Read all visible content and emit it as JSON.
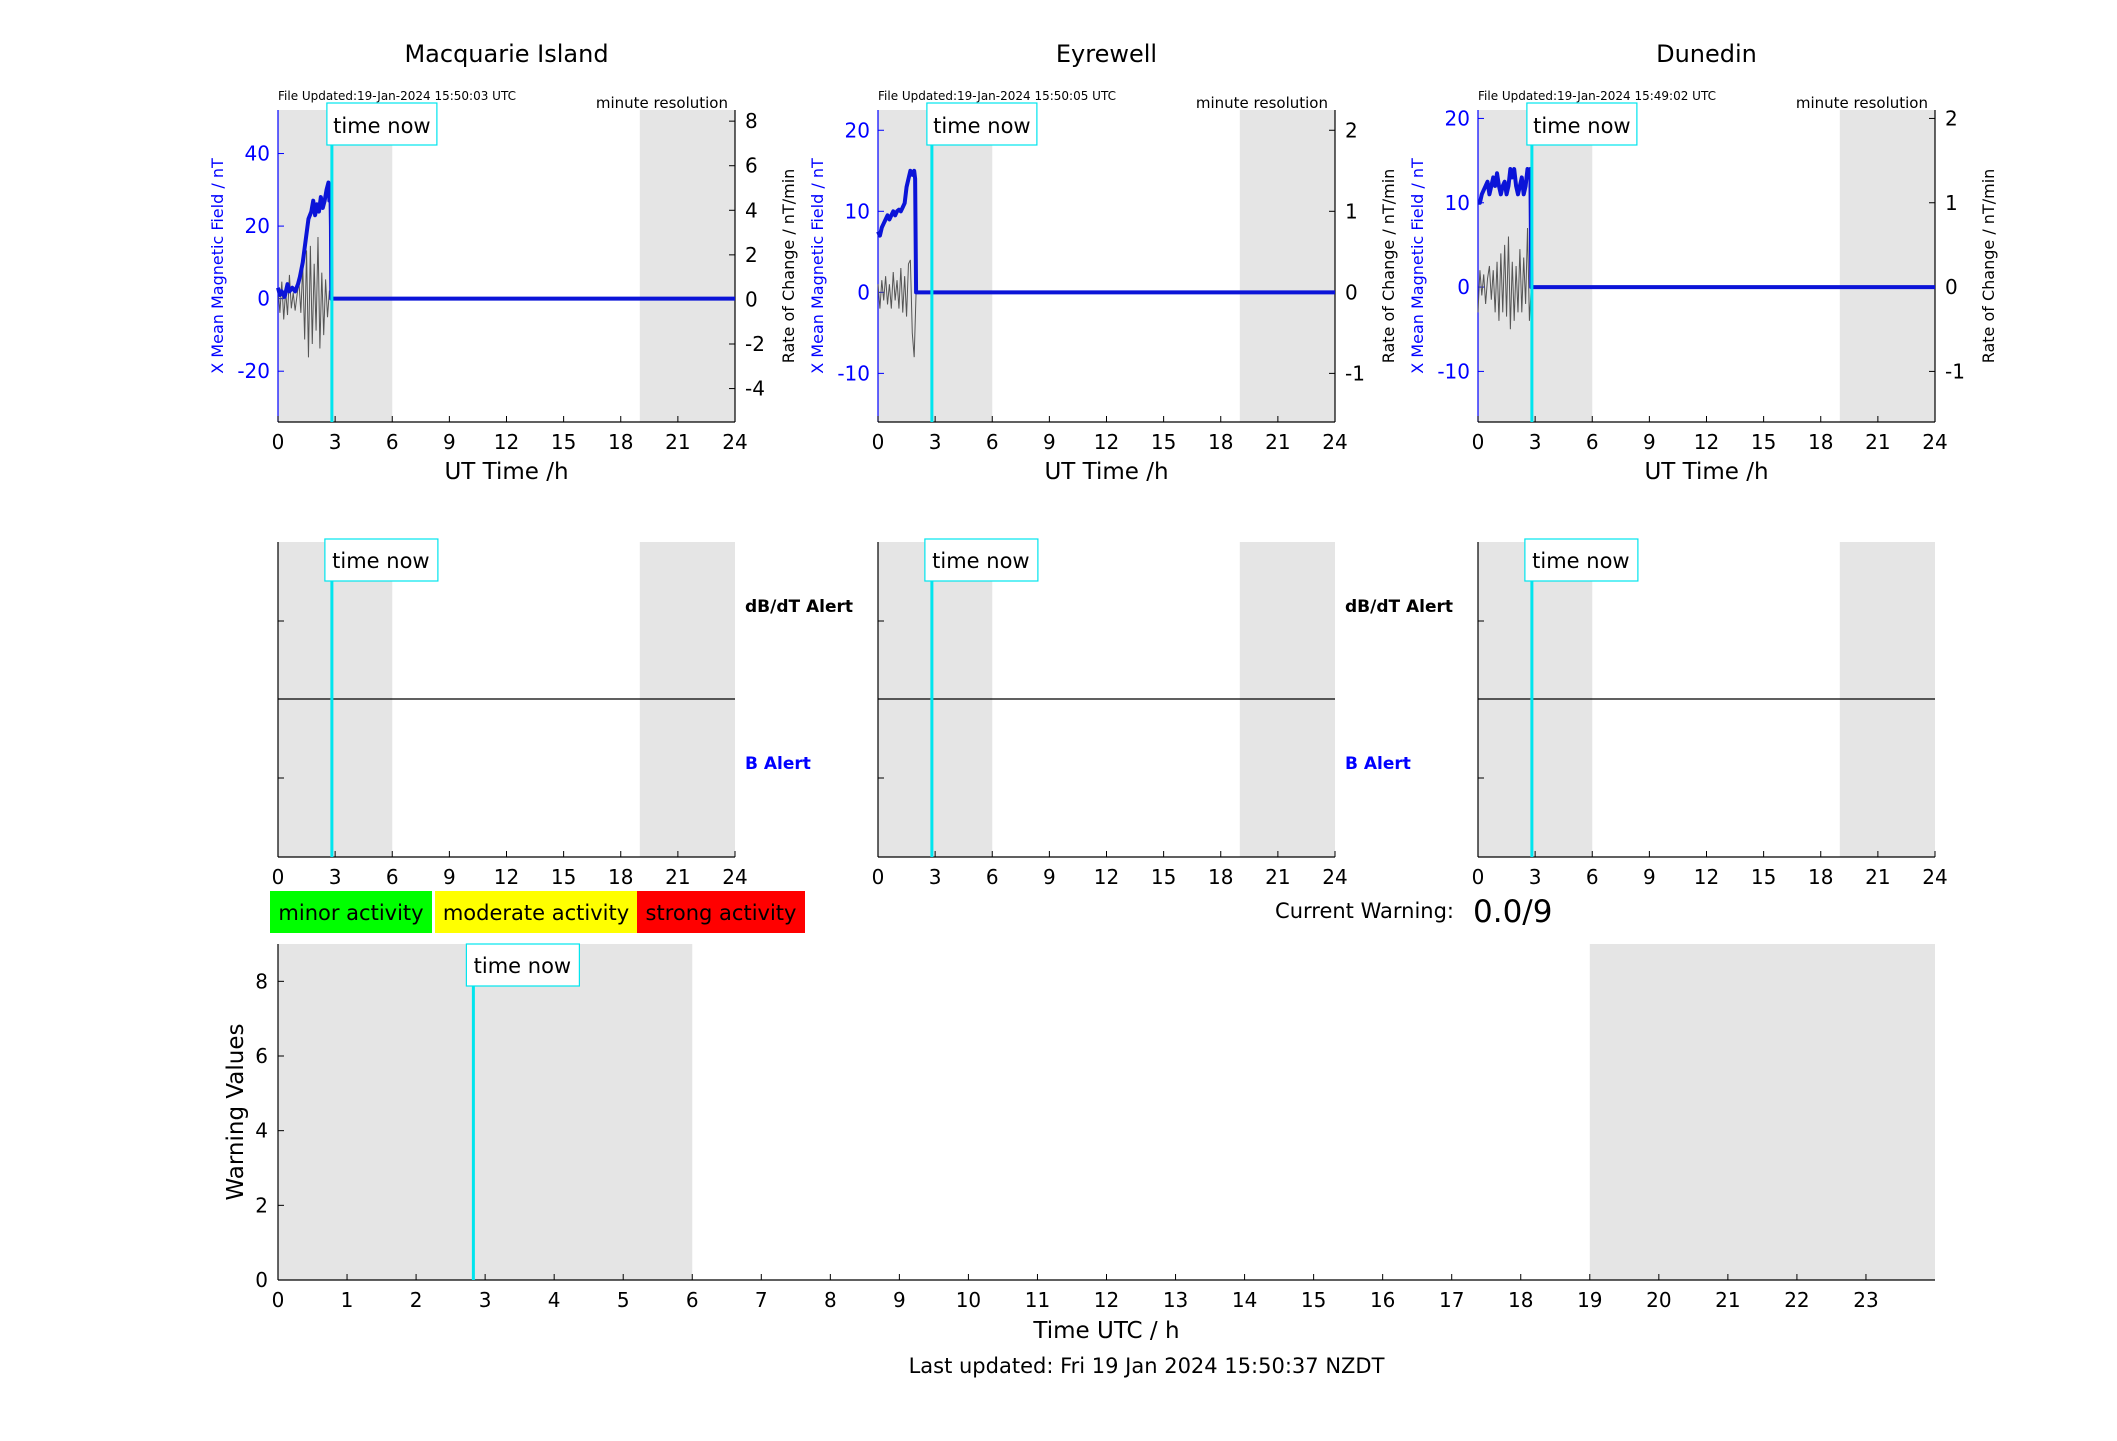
{
  "colors": {
    "blue": "#0000ff",
    "series_blue": "#0b14d8",
    "rate_gray": "#555555",
    "shade": "#e5e5e5",
    "time_now": "#00e5ee",
    "minor": "#00ff00",
    "moderate": "#ffff00",
    "strong": "#ff0000"
  },
  "time_now_h": 2.83,
  "night_bands_h": [
    [
      0,
      6
    ],
    [
      19,
      24
    ]
  ],
  "stations": [
    {
      "title": "Macquarie Island",
      "file_updated": "File Updated:19-Jan-2024 15:50:03 UTC",
      "resolution": "minute resolution",
      "ylabel": "X Mean Magnetic Field / nT",
      "y2label": "Rate of Change / nT/min",
      "yticks": [
        "40",
        "20",
        "0",
        "-20"
      ],
      "y2ticks": [
        "8",
        "6",
        "4",
        "2",
        "0",
        "-2",
        "-4"
      ],
      "xlabel": "UT Time /h",
      "xticks": [
        "0",
        "3",
        "6",
        "9",
        "12",
        "15",
        "18",
        "21",
        "24"
      ],
      "time_now_label": "time now",
      "alert_time_now_label": "time now",
      "dbdt_label": "dB/dT Alert",
      "b_label": "B Alert",
      "alert_xticks": [
        "0",
        "3",
        "6",
        "9",
        "12",
        "15",
        "18",
        "21",
        "24"
      ]
    },
    {
      "title": "Eyrewell",
      "file_updated": "File Updated:19-Jan-2024 15:50:05 UTC",
      "resolution": "minute resolution",
      "ylabel": "X Mean Magnetic Field / nT",
      "y2label": "Rate of Change / nT/min",
      "yticks": [
        "20",
        "10",
        "0",
        "-10"
      ],
      "y2ticks": [
        "2",
        "1",
        "0",
        "-1"
      ],
      "xlabel": "UT Time /h",
      "xticks": [
        "0",
        "3",
        "6",
        "9",
        "12",
        "15",
        "18",
        "21",
        "24"
      ],
      "time_now_label": "time now",
      "alert_time_now_label": "time now",
      "dbdt_label": "dB/dT Alert",
      "b_label": "B Alert",
      "alert_xticks": [
        "0",
        "3",
        "6",
        "9",
        "12",
        "15",
        "18",
        "21",
        "24"
      ]
    },
    {
      "title": "Dunedin",
      "file_updated": "File Updated:19-Jan-2024 15:49:02 UTC",
      "resolution": "minute resolution",
      "ylabel": "X Mean Magnetic Field / nT",
      "y2label": "Rate of Change / nT/min",
      "yticks": [
        "20",
        "10",
        "0",
        "-10"
      ],
      "y2ticks": [
        "2",
        "1",
        "0",
        "-1"
      ],
      "xlabel": "UT Time /h",
      "xticks": [
        "0",
        "3",
        "6",
        "9",
        "12",
        "15",
        "18",
        "21",
        "24"
      ],
      "time_now_label": "time now",
      "alert_time_now_label": "time now",
      "alert_xticks": [
        "0",
        "3",
        "6",
        "9",
        "12",
        "15",
        "18",
        "21",
        "24"
      ]
    }
  ],
  "legend": {
    "minor": "minor activity",
    "moderate": "moderate activity",
    "strong": "strong activity"
  },
  "current_warning": {
    "label": "Current Warning:",
    "value": "0.0/9"
  },
  "warning_chart": {
    "time_now_label": "time now",
    "ylabel": "Warning Values",
    "xlabel": "Time UTC / h",
    "yticks": [
      "8",
      "6",
      "4",
      "2",
      "0"
    ],
    "xticks": [
      "0",
      "1",
      "2",
      "3",
      "4",
      "5",
      "6",
      "7",
      "8",
      "9",
      "10",
      "11",
      "12",
      "13",
      "14",
      "15",
      "16",
      "17",
      "18",
      "19",
      "20",
      "21",
      "22",
      "23"
    ]
  },
  "footer": "Last updated: Fri 19 Jan 2024 15:50:37 NZDT",
  "chart_data": [
    {
      "type": "line",
      "station": "Macquarie Island",
      "xlim": [
        0,
        24
      ],
      "ylim": [
        -34,
        52
      ],
      "y2lim": [
        -5.5,
        8.5
      ],
      "series": [
        {
          "x": [
            0,
            0.1,
            0.2,
            0.35,
            0.5,
            0.6,
            0.75,
            0.9,
            1.05,
            1.15,
            1.3,
            1.45,
            1.6,
            1.75,
            1.85,
            1.95,
            2.05,
            2.15,
            2.25,
            2.35,
            2.45,
            2.55,
            2.65,
            2.7,
            2.75,
            2.78,
            2.8,
            3,
            6,
            12,
            18,
            24
          ],
          "y": [
            3,
            1,
            2,
            0.5,
            4,
            2,
            3,
            2,
            4,
            6,
            10,
            16,
            22,
            24,
            27,
            23,
            26,
            24,
            28,
            25,
            27,
            30,
            32,
            27,
            31,
            20,
            0,
            0,
            0,
            0,
            0,
            0
          ]
        }
      ],
      "rate": {
        "x": [
          0,
          0.1,
          0.2,
          0.3,
          0.4,
          0.5,
          0.6,
          0.7,
          0.8,
          0.9,
          1.0,
          1.1,
          1.2,
          1.3,
          1.4,
          1.5,
          1.6,
          1.7,
          1.8,
          1.9,
          2.0,
          2.1,
          2.2,
          2.3,
          2.4,
          2.5,
          2.6,
          2.7,
          2.75
        ],
        "y": [
          0.5,
          -0.6,
          0.8,
          -0.9,
          0.4,
          -0.7,
          1.1,
          -0.4,
          0.3,
          -0.5,
          0.2,
          0.8,
          -0.6,
          1.5,
          -1.8,
          2.2,
          -2.6,
          2.4,
          -2.0,
          1.6,
          -1.4,
          2.8,
          -2.2,
          1.2,
          -1.6,
          0.9,
          -0.8,
          0.4,
          0
        ]
      }
    },
    {
      "type": "line",
      "station": "Eyrewell",
      "xlim": [
        0,
        24
      ],
      "ylim": [
        -16,
        22.5
      ],
      "y2lim": [
        -1.6,
        2.25
      ],
      "series": [
        {
          "x": [
            0,
            0.1,
            0.2,
            0.3,
            0.4,
            0.5,
            0.6,
            0.7,
            0.8,
            0.9,
            1.0,
            1.1,
            1.2,
            1.3,
            1.4,
            1.5,
            1.6,
            1.7,
            1.8,
            1.9,
            1.95,
            2.0,
            3,
            6,
            12,
            18,
            24
          ],
          "y": [
            7.5,
            7,
            8,
            8.5,
            9,
            9.5,
            9,
            9.5,
            10,
            9.5,
            10,
            10.2,
            10,
            10.5,
            11,
            13,
            14,
            15,
            14.5,
            15,
            14,
            0,
            0,
            0,
            0,
            0,
            0
          ]
        }
      ],
      "rate": {
        "x": [
          0,
          0.1,
          0.2,
          0.3,
          0.4,
          0.5,
          0.6,
          0.7,
          0.8,
          0.9,
          1.0,
          1.1,
          1.2,
          1.3,
          1.4,
          1.5,
          1.6,
          1.7,
          1.8,
          1.9,
          2.0
        ],
        "y": [
          0.1,
          -0.2,
          0.15,
          -0.1,
          0.2,
          -0.15,
          0.1,
          -0.2,
          0.25,
          -0.1,
          0.15,
          -0.2,
          0.3,
          -0.25,
          0.2,
          -0.3,
          0.35,
          0.4,
          -0.5,
          -0.8,
          0
        ]
      }
    },
    {
      "type": "line",
      "station": "Dunedin",
      "xlim": [
        0,
        24
      ],
      "ylim": [
        -16,
        21
      ],
      "y2lim": [
        -1.6,
        2.1
      ],
      "series": [
        {
          "x": [
            0,
            0.1,
            0.2,
            0.3,
            0.4,
            0.5,
            0.6,
            0.7,
            0.8,
            0.9,
            1.0,
            1.1,
            1.2,
            1.3,
            1.4,
            1.5,
            1.6,
            1.7,
            1.8,
            1.9,
            2.0,
            2.1,
            2.2,
            2.3,
            2.4,
            2.5,
            2.6,
            2.7,
            2.75,
            2.8,
            3,
            6,
            12,
            18,
            24
          ],
          "y": [
            10,
            10,
            11,
            11.5,
            12,
            12.5,
            11,
            12,
            13,
            12,
            13.5,
            12,
            11,
            12,
            12.5,
            11,
            12,
            14,
            13,
            14,
            12,
            11,
            12,
            13,
            11,
            12,
            14,
            13,
            14,
            0,
            0,
            0,
            0,
            0,
            0
          ]
        }
      ],
      "rate": {
        "x": [
          0,
          0.1,
          0.2,
          0.3,
          0.4,
          0.5,
          0.6,
          0.7,
          0.8,
          0.9,
          1.0,
          1.1,
          1.2,
          1.3,
          1.4,
          1.5,
          1.6,
          1.7,
          1.8,
          1.9,
          2.0,
          2.1,
          2.2,
          2.3,
          2.4,
          2.5,
          2.6,
          2.7,
          2.8
        ],
        "y": [
          -0.3,
          0.2,
          -0.1,
          0.15,
          -0.2,
          0.1,
          0.25,
          -0.15,
          0.2,
          -0.3,
          0.3,
          -0.4,
          0.4,
          -0.3,
          0.5,
          -0.35,
          0.6,
          -0.5,
          0.3,
          -0.4,
          0.25,
          -0.3,
          0.45,
          -0.3,
          0.35,
          -0.2,
          0.7,
          -0.4,
          0
        ]
      }
    },
    {
      "type": "line",
      "title": "Warning Values",
      "xlabel": "Time UTC / h",
      "ylabel": "Warning Values",
      "xlim": [
        0,
        24
      ],
      "ylim": [
        0,
        9
      ],
      "series": [
        {
          "x": [
            0,
            2.83
          ],
          "y": [
            0,
            0
          ]
        }
      ]
    }
  ]
}
